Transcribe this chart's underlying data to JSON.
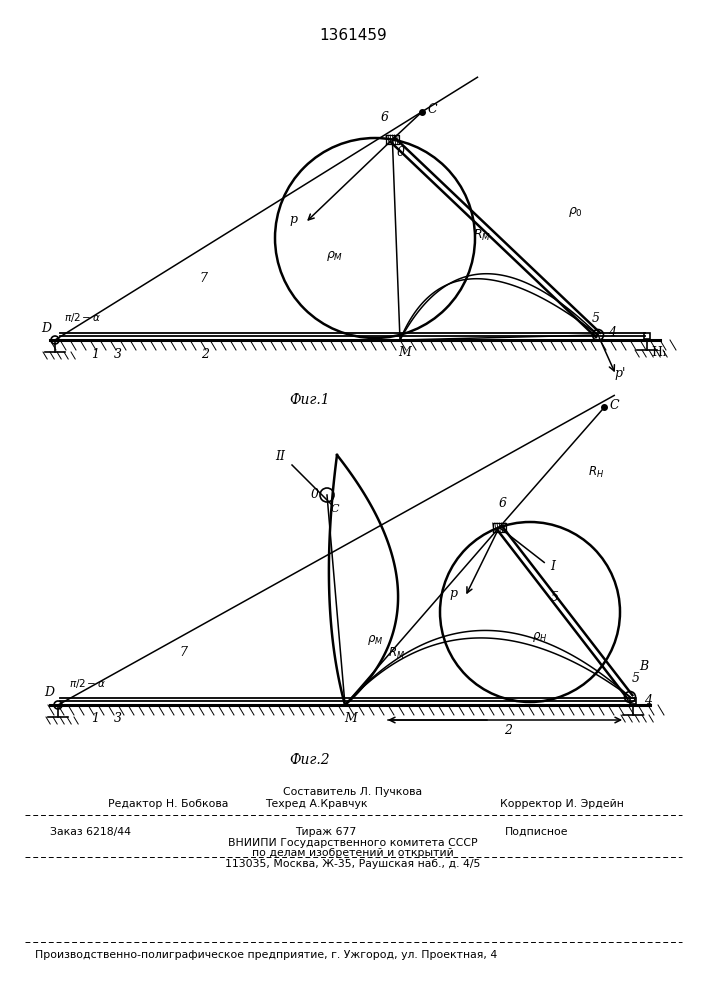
{
  "patent_number": "1361459",
  "fig1_caption": "Фиг.1",
  "fig2_caption": "Фиг.2",
  "bg_color": "#ffffff",
  "lc": "#000000",
  "footer": {
    "line1_center": "Составитель Л. Пучкова",
    "line2_left": "Редактор Н. Бобкова",
    "line2_center": "Техред А.Кравчук",
    "line2_right": "Корректор И. Эрдейн",
    "line3_left": "Заказ 6218/44",
    "line3_center": "Тираж 677",
    "line3_right": "Подписное",
    "line4": "ВНИИПИ Государственного комитета СССР",
    "line5": "по делам изобретений и открытий",
    "line6": "113035, Москва, Ж-35, Раушская наб., д. 4/5",
    "line7": "Производственно-полиграфическое предприятие, г. Ужгород, ул. Проектная, 4"
  }
}
